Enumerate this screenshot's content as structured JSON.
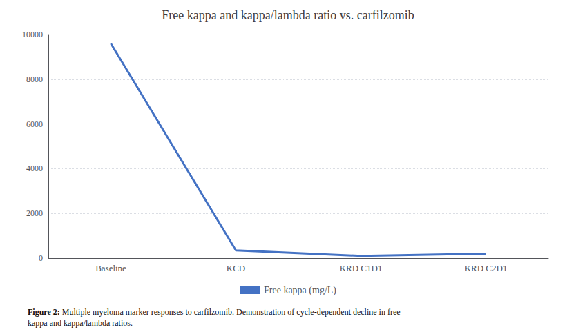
{
  "chart_data": {
    "type": "line",
    "title": "Free kappa and kappa/lambda ratio vs. carfilzomib",
    "categories": [
      "Baseline",
      "KCD",
      "KRD C1D1",
      "KRD C2D1"
    ],
    "series": [
      {
        "name": "Free kappa (mg/L)",
        "color": "#4472C4",
        "values": [
          9600,
          350,
          100,
          200
        ]
      }
    ],
    "ylim": [
      0,
      10000
    ],
    "yticks": [
      0,
      2000,
      4000,
      6000,
      8000,
      10000
    ],
    "grid": true,
    "legend": "bottom",
    "caption": "Figure 2: Multiple myeloma marker responses to carfilzomib. Demonstration of cycle-dependent decline in free\nkappa and kappa/lambda ratios."
  }
}
